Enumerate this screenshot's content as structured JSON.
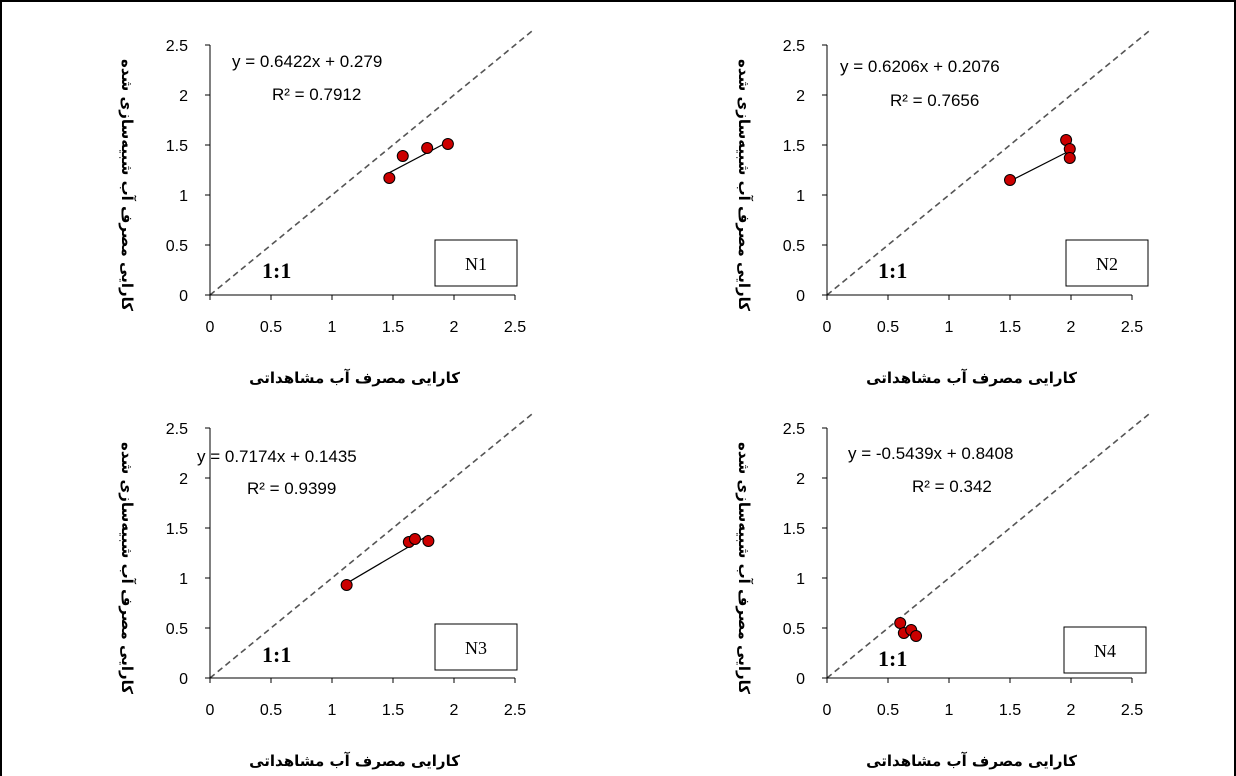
{
  "chart_data": [
    {
      "type": "scatter",
      "panel_label": "N1",
      "xlabel": "کارایی مصرف آب مشاهداتی",
      "ylabel": "کارایی مصرف آب شبیه‌سازی شده",
      "xlim": [
        0,
        2.5
      ],
      "ylim": [
        0,
        2.5
      ],
      "xticks": [
        "0",
        "0.5",
        "1",
        "1.5",
        "2",
        "2.5"
      ],
      "yticks": [
        "0",
        "0.5",
        "1",
        "1.5",
        "2",
        "2.5"
      ],
      "points": [
        [
          1.47,
          1.17
        ],
        [
          1.58,
          1.39
        ],
        [
          1.78,
          1.47
        ],
        [
          1.95,
          1.51
        ]
      ],
      "fit": {
        "slope": 0.6422,
        "intercept": 0.279,
        "x_range": [
          1.47,
          1.95
        ]
      },
      "equation": "y = 0.6422x + 0.279",
      "r2": "R² = 0.7912",
      "one_to_one_label": "1:1"
    },
    {
      "type": "scatter",
      "panel_label": "N2",
      "xlabel": "کارایی مصرف آب مشاهداتی",
      "ylabel": "کارایی مصرف آب شبیه‌سازی شده",
      "xlim": [
        0,
        2.5
      ],
      "ylim": [
        0,
        2.5
      ],
      "xticks": [
        "0",
        "0.5",
        "1",
        "1.5",
        "2",
        "2.5"
      ],
      "yticks": [
        "0",
        "0.5",
        "1",
        "1.5",
        "2",
        "2.5"
      ],
      "points": [
        [
          1.5,
          1.15
        ],
        [
          1.96,
          1.55
        ],
        [
          1.99,
          1.46
        ],
        [
          1.99,
          1.37
        ]
      ],
      "fit": {
        "slope": 0.6206,
        "intercept": 0.2076,
        "x_range": [
          1.5,
          1.99
        ]
      },
      "equation": "y = 0.6206x + 0.2076",
      "r2": "R² = 0.7656",
      "one_to_one_label": "1:1"
    },
    {
      "type": "scatter",
      "panel_label": "N3",
      "xlabel": "کارایی مصرف آب مشاهداتی",
      "ylabel": "کارایی مصرف آب شبیه‌سازی شده",
      "xlim": [
        0,
        2.5
      ],
      "ylim": [
        0,
        2.5
      ],
      "xticks": [
        "0",
        "0.5",
        "1",
        "1.5",
        "2",
        "2.5"
      ],
      "yticks": [
        "0",
        "0.5",
        "1",
        "1.5",
        "2",
        "2.5"
      ],
      "points": [
        [
          1.12,
          0.93
        ],
        [
          1.63,
          1.36
        ],
        [
          1.68,
          1.39
        ],
        [
          1.79,
          1.37
        ]
      ],
      "fit": {
        "slope": 0.7174,
        "intercept": 0.1435,
        "x_range": [
          1.12,
          1.79
        ]
      },
      "equation": "y = 0.7174x + 0.1435",
      "r2": "R² = 0.9399",
      "one_to_one_label": "1:1"
    },
    {
      "type": "scatter",
      "panel_label": "N4",
      "xlabel": "کارایی مصرف آب مشاهداتی",
      "ylabel": "کارایی مصرف آب شبیه‌سازی شده",
      "xlim": [
        0,
        2.5
      ],
      "ylim": [
        0,
        2.5
      ],
      "xticks": [
        "0",
        "0.5",
        "1",
        "1.5",
        "2",
        "2.5"
      ],
      "yticks": [
        "0",
        "0.5",
        "1",
        "1.5",
        "2",
        "2.5"
      ],
      "points": [
        [
          0.6,
          0.55
        ],
        [
          0.63,
          0.45
        ],
        [
          0.69,
          0.48
        ],
        [
          0.73,
          0.42
        ]
      ],
      "fit": {
        "slope": -0.5439,
        "intercept": 0.8408,
        "x_range": [
          0.6,
          0.73
        ]
      },
      "equation": "y = -0.5439x + 0.8408",
      "r2": "R² = 0.342",
      "one_to_one_label": "1:1"
    }
  ],
  "colors": {
    "marker_fill": "#cc0000",
    "marker_stroke": "#000000",
    "line": "#000000",
    "diagonal": "#555555"
  }
}
